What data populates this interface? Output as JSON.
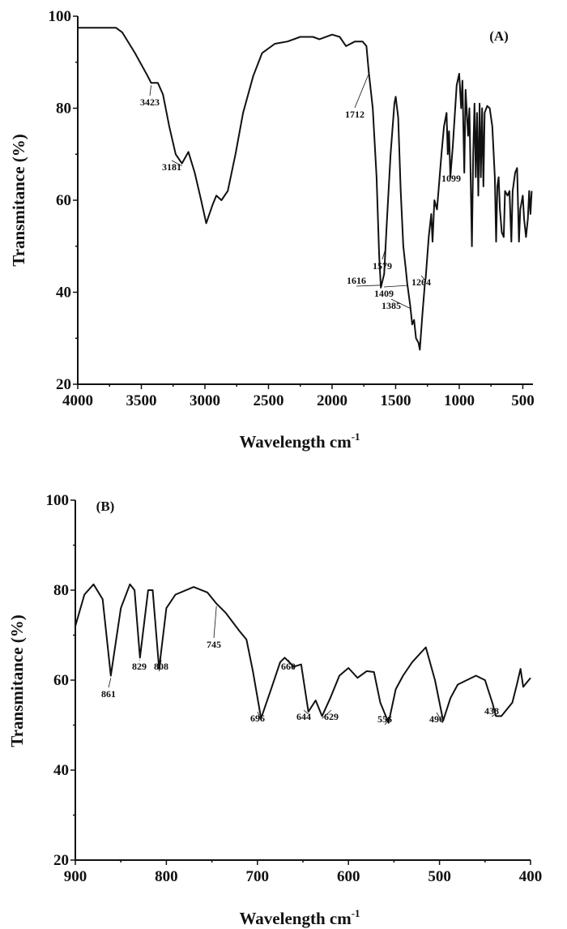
{
  "chart_data": [
    {
      "type": "line",
      "panel_label": "(A)",
      "xlabel": "Wavelength cm",
      "xlabel_sup": "-1",
      "ylabel": "Transmitance (%)",
      "xlim": [
        4000,
        420
      ],
      "ylim": [
        20,
        100
      ],
      "x_reversed": true,
      "xticks": [
        4000,
        3500,
        3000,
        2500,
        2000,
        1500,
        1000,
        500
      ],
      "yticks": [
        20,
        40,
        60,
        80,
        100
      ],
      "grid": false,
      "line_color": "#111111",
      "series": [
        {
          "x": [
            4000,
            3700,
            3650,
            3550,
            3450,
            3423,
            3370,
            3330,
            3280,
            3230,
            3181,
            3130,
            3080,
            3030,
            2990,
            2940,
            2910,
            2870,
            2820,
            2760,
            2700,
            2620,
            2550,
            2450,
            2350,
            2250,
            2150,
            2100,
            2000,
            1940,
            1890,
            1820,
            1760,
            1730,
            1712,
            1680,
            1650,
            1630,
            1616,
            1590,
            1570,
            1540,
            1510,
            1500,
            1480,
            1460,
            1440,
            1420,
            1409,
            1385,
            1370,
            1355,
            1340,
            1320,
            1310,
            1290,
            1270,
            1264,
            1240,
            1220,
            1210,
            1195,
            1175,
            1160,
            1140,
            1120,
            1100,
            1090,
            1080,
            1070,
            1050,
            1020,
            1000,
            985,
            975,
            960,
            950,
            930,
            920,
            900,
            890,
            880,
            870,
            860,
            850,
            840,
            830,
            820,
            810,
            800,
            780,
            760,
            740,
            720,
            710,
            700,
            690,
            680,
            665,
            650,
            640,
            620,
            605,
            590,
            580,
            560,
            545,
            530,
            520,
            500,
            490,
            475,
            460,
            450,
            440,
            430
          ],
          "y": [
            97.5,
            97.5,
            96.5,
            92,
            87,
            85.5,
            85.5,
            83,
            76,
            70,
            68,
            70.5,
            66,
            60,
            55,
            59,
            61,
            60,
            62,
            70,
            79,
            87,
            92,
            94,
            94.5,
            95.5,
            95.5,
            95,
            96,
            95.5,
            93.5,
            94.5,
            94.5,
            93.5,
            88,
            80,
            65,
            48,
            41,
            44,
            55,
            70,
            81,
            82.5,
            78,
            62,
            50,
            45,
            42,
            37,
            33,
            34,
            30,
            29,
            27.5,
            35,
            42,
            43,
            52,
            57,
            51,
            60,
            58,
            63,
            70,
            76,
            79,
            70,
            75,
            65,
            72,
            85,
            87.5,
            80,
            86,
            66,
            84,
            74,
            80,
            50,
            70,
            81,
            65,
            79,
            61,
            81,
            65,
            80,
            63,
            79,
            80.5,
            80,
            76,
            65,
            51,
            63,
            65,
            58,
            53,
            52,
            62,
            61,
            62,
            51,
            62,
            66,
            67,
            51,
            58,
            61,
            56,
            52,
            56,
            62,
            57,
            62
          ]
        }
      ],
      "annotations": [
        "3423",
        "3181",
        "1712",
        "1616",
        "1579",
        "1409",
        "1385",
        "1264",
        "1099"
      ]
    },
    {
      "type": "line",
      "panel_label": "(B)",
      "xlabel": "Wavelength cm",
      "xlabel_sup": "-1",
      "ylabel": "Transmitance (%)",
      "xlim": [
        900,
        400
      ],
      "ylim": [
        20,
        100
      ],
      "x_reversed": true,
      "xticks": [
        900,
        800,
        700,
        600,
        500,
        400
      ],
      "yticks": [
        20,
        40,
        60,
        80,
        100
      ],
      "grid": false,
      "line_color": "#111111",
      "series": [
        {
          "x": [
            900,
            890,
            880,
            870,
            861,
            850,
            840,
            835,
            829,
            820,
            815,
            808,
            800,
            790,
            770,
            755,
            745,
            735,
            720,
            712,
            705,
            696,
            685,
            675,
            670,
            660,
            652,
            644,
            636,
            629,
            620,
            610,
            600,
            590,
            580,
            572,
            565,
            556,
            548,
            540,
            530,
            515,
            505,
            496,
            488,
            480,
            470,
            460,
            450,
            442,
            438,
            432,
            420,
            415,
            411,
            408,
            400
          ],
          "y": [
            72,
            79,
            81.3,
            78,
            61,
            76,
            81.3,
            80,
            65,
            80,
            80,
            62.5,
            76,
            79,
            80.7,
            79.5,
            77,
            75,
            71,
            69,
            62,
            51.5,
            58,
            64,
            65,
            63,
            63.5,
            53,
            55.5,
            52,
            56,
            61,
            62.7,
            60.5,
            62,
            61.8,
            55,
            50.5,
            58,
            61,
            64,
            67.3,
            60,
            51,
            56,
            59,
            60,
            61,
            60,
            55,
            52,
            52,
            55,
            59,
            62.5,
            58.5,
            60.5
          ]
        }
      ],
      "annotations": [
        "861",
        "829",
        "808",
        "745",
        "660",
        "696",
        "644",
        "629",
        "556",
        "496",
        "438"
      ]
    }
  ]
}
